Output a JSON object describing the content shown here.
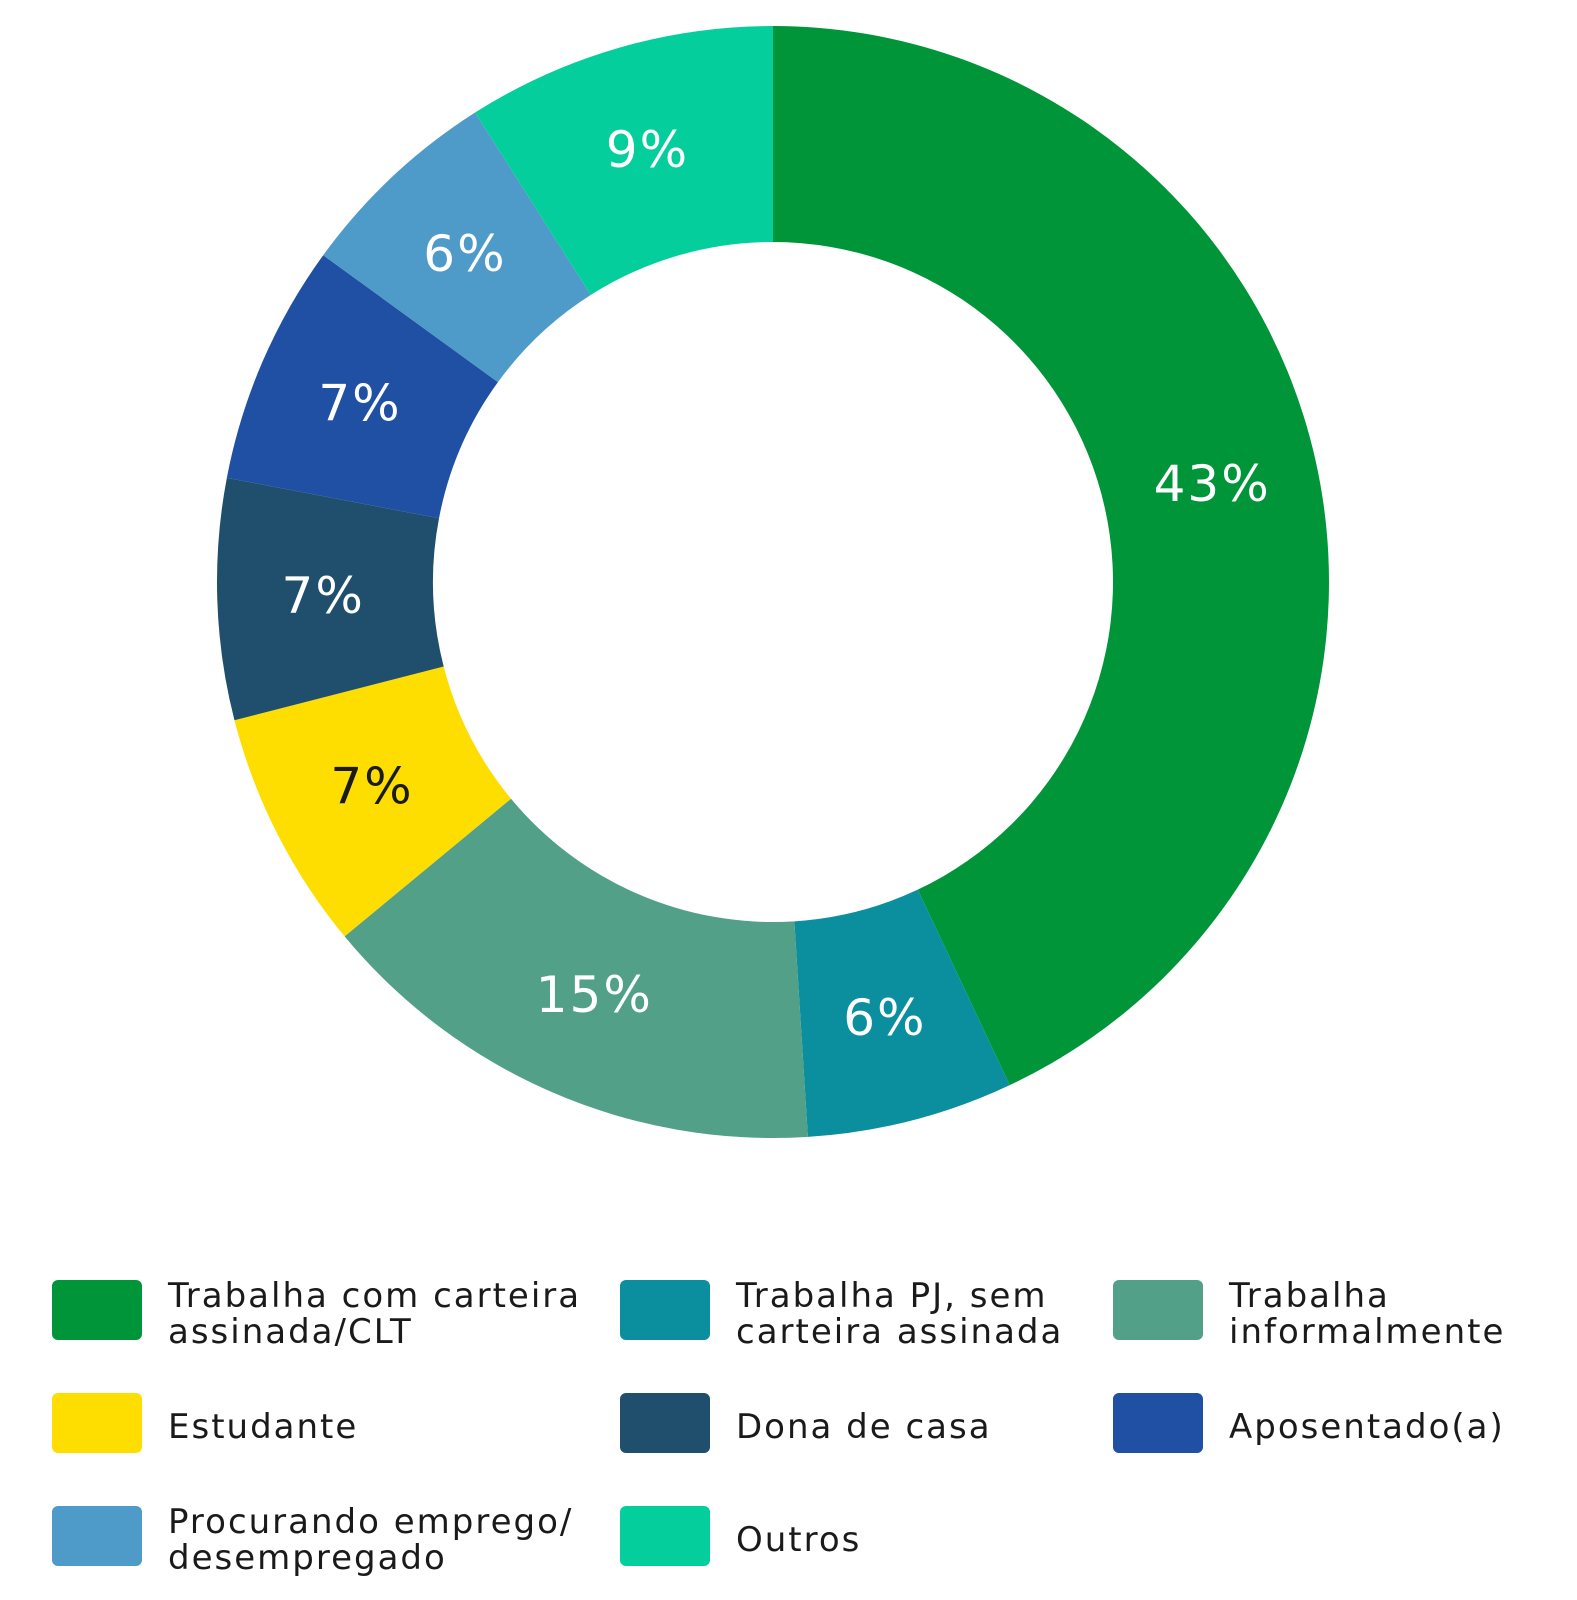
{
  "chart_data": {
    "type": "pie",
    "variant": "donut",
    "start": "top",
    "direction": "clockwise",
    "slices": [
      {
        "label": [
          "Trabalha com carteira",
          "assinada/CLT"
        ],
        "value": 43,
        "display": "43%",
        "color": "#01953a",
        "label_color": "#ffffff"
      },
      {
        "label": [
          "Trabalha PJ, sem",
          "carteira assinada"
        ],
        "value": 6,
        "display": "6%",
        "color": "#0b8f9e",
        "label_color": "#ffffff"
      },
      {
        "label": [
          "Trabalha",
          "informalmente"
        ],
        "value": 15,
        "display": "15%",
        "color": "#52a088",
        "label_color": "#ffffff"
      },
      {
        "label": [
          "Estudante"
        ],
        "value": 7,
        "display": "7%",
        "color": "#fedd00",
        "label_color": "#1a1a1a"
      },
      {
        "label": [
          "Dona de casa"
        ],
        "value": 7,
        "display": "7%",
        "color": "#204f6e",
        "label_color": "#ffffff"
      },
      {
        "label": [
          "Aposentado(a)"
        ],
        "value": 7,
        "display": "7%",
        "color": "#1f50a3",
        "label_color": "#ffffff"
      },
      {
        "label": [
          "Procurando emprego/",
          "desempregado"
        ],
        "value": 6,
        "display": "6%",
        "color": "#4e9bca",
        "label_color": "#ffffff"
      },
      {
        "label": [
          "Outros"
        ],
        "value": 9,
        "display": "9%",
        "color": "#04cf9c",
        "label_color": "#ffffff"
      }
    ],
    "legend_position": "bottom",
    "legend_columns": 3
  }
}
